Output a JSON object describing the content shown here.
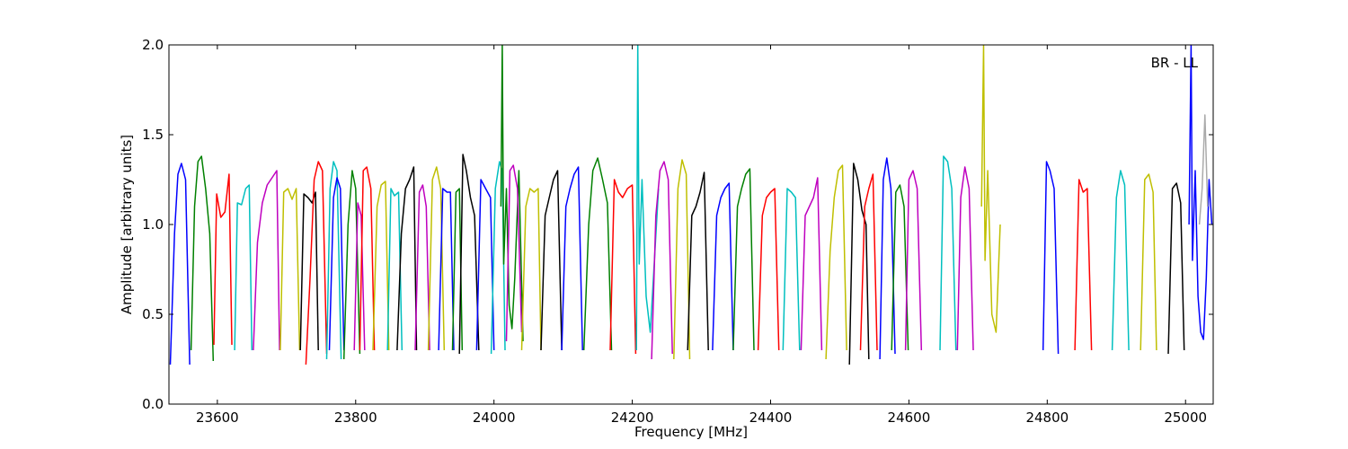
{
  "chart_data": {
    "type": "line",
    "title": "",
    "annotation": "BR - LL",
    "xlabel": "Frequency [MHz]",
    "ylabel": "Amplitude [arbitrary units]",
    "xlim": [
      23530,
      25040
    ],
    "ylim": [
      0.0,
      2.0
    ],
    "x_ticks": [
      23600,
      23800,
      24000,
      24200,
      24400,
      24600,
      24800,
      25000
    ],
    "x_tick_labels": [
      "23600",
      "23800",
      "24000",
      "24200",
      "24400",
      "24600",
      "24800",
      "25000"
    ],
    "y_ticks": [
      0.0,
      0.5,
      1.0,
      1.5,
      2.0
    ],
    "y_tick_labels": [
      "0.0",
      "0.5",
      "1.0",
      "1.5",
      "2.0"
    ],
    "grid": false,
    "legend": "none",
    "color_cycle": [
      "#0000ff",
      "#008000",
      "#ff0000",
      "#00bfbf",
      "#bf00bf",
      "#bfbf00",
      "#000000"
    ],
    "series": [
      {
        "color": "#0000ff",
        "x": [
          23532,
          23538,
          23543,
          23548,
          23554,
          23560
        ],
        "y": [
          0.22,
          0.95,
          1.28,
          1.34,
          1.25,
          0.22
        ]
      },
      {
        "color": "#008000",
        "x": [
          23562,
          23567,
          23572,
          23577,
          23583,
          23589,
          23594
        ],
        "y": [
          0.3,
          1.1,
          1.35,
          1.38,
          1.2,
          0.95,
          0.24
        ]
      },
      {
        "color": "#ff0000",
        "x": [
          23595,
          23599,
          23605,
          23611,
          23617,
          23621
        ],
        "y": [
          0.33,
          1.17,
          1.04,
          1.07,
          1.28,
          0.33
        ]
      },
      {
        "color": "#00bfbf",
        "x": [
          23625,
          23629,
          23635,
          23641,
          23646,
          23650
        ],
        "y": [
          0.3,
          1.12,
          1.11,
          1.2,
          1.22,
          0.3
        ]
      },
      {
        "color": "#bf00bf",
        "x": [
          23652,
          23658,
          23665,
          23672,
          23679,
          23686,
          23690
        ],
        "y": [
          0.3,
          0.9,
          1.12,
          1.22,
          1.26,
          1.3,
          0.3
        ]
      },
      {
        "color": "#bfbf00",
        "x": [
          23691,
          23696,
          23702,
          23708,
          23714,
          23719
        ],
        "y": [
          0.3,
          1.18,
          1.2,
          1.14,
          1.2,
          0.3
        ]
      },
      {
        "color": "#000000",
        "x": [
          23720,
          23725,
          23731,
          23737,
          23742,
          23746
        ],
        "y": [
          0.3,
          1.17,
          1.15,
          1.12,
          1.18,
          0.3
        ]
      },
      {
        "color": "#ff0000",
        "x": [
          23728,
          23734,
          23740,
          23746,
          23752,
          23758
        ],
        "y": [
          0.22,
          0.7,
          1.25,
          1.35,
          1.3,
          0.28
        ]
      },
      {
        "color": "#00bfbf",
        "x": [
          23758,
          23763,
          23768,
          23773,
          23779
        ],
        "y": [
          0.25,
          1.2,
          1.35,
          1.3,
          0.25
        ]
      },
      {
        "color": "#0000ff",
        "x": [
          23762,
          23768,
          23773,
          23778,
          23783
        ],
        "y": [
          0.3,
          1.15,
          1.26,
          1.2,
          0.3
        ]
      },
      {
        "color": "#008000",
        "x": [
          23783,
          23789,
          23795,
          23800,
          23806
        ],
        "y": [
          0.25,
          1.0,
          1.3,
          1.2,
          0.28
        ]
      },
      {
        "color": "#bf00bf",
        "x": [
          23798,
          23803,
          23808,
          23813
        ],
        "y": [
          0.3,
          1.12,
          1.05,
          0.3
        ]
      },
      {
        "color": "#ff0000",
        "x": [
          23806,
          23811,
          23816,
          23822,
          23827
        ],
        "y": [
          0.3,
          1.3,
          1.32,
          1.2,
          0.3
        ]
      },
      {
        "color": "#bfbf00",
        "x": [
          23825,
          23831,
          23837,
          23843,
          23848
        ],
        "y": [
          0.3,
          1.1,
          1.22,
          1.24,
          0.3
        ]
      },
      {
        "color": "#00bfbf",
        "x": [
          23846,
          23851,
          23856,
          23862,
          23867
        ],
        "y": [
          0.3,
          1.2,
          1.16,
          1.18,
          0.3
        ]
      },
      {
        "color": "#000000",
        "x": [
          23860,
          23866,
          23872,
          23878,
          23884,
          23888
        ],
        "y": [
          0.3,
          0.95,
          1.2,
          1.25,
          1.32,
          0.3
        ]
      },
      {
        "color": "#bf00bf",
        "x": [
          23886,
          23892,
          23897,
          23902,
          23907
        ],
        "y": [
          0.3,
          1.18,
          1.22,
          1.1,
          0.3
        ]
      },
      {
        "color": "#bfbf00",
        "x": [
          23905,
          23911,
          23917,
          23923,
          23928
        ],
        "y": [
          0.3,
          1.25,
          1.32,
          1.2,
          0.3
        ]
      },
      {
        "color": "#0000ff",
        "x": [
          23920,
          23926,
          23932,
          23937,
          23942
        ],
        "y": [
          0.3,
          1.2,
          1.18,
          1.18,
          0.3
        ]
      },
      {
        "color": "#008000",
        "x": [
          23940,
          23945,
          23950,
          23954
        ],
        "y": [
          0.3,
          1.18,
          1.2,
          0.3
        ]
      },
      {
        "color": "#000000",
        "x": [
          23950,
          23955,
          23960,
          23966,
          23972,
          23978
        ],
        "y": [
          0.28,
          1.39,
          1.3,
          1.15,
          1.05,
          0.3
        ]
      },
      {
        "color": "#0000ff",
        "x": [
          23975,
          23981,
          23988,
          23995,
          24000
        ],
        "y": [
          0.3,
          1.25,
          1.2,
          1.15,
          0.3
        ]
      },
      {
        "color": "#00bfbf",
        "x": [
          23996,
          24002,
          24008,
          24012,
          24016
        ],
        "y": [
          0.28,
          1.2,
          1.35,
          1.3,
          0.3
        ]
      },
      {
        "color": "#008000",
        "x": [
          24010,
          24012,
          24014,
          24018,
          24022,
          24026,
          24030,
          24036,
          24042
        ],
        "y": [
          1.1,
          2.0,
          0.78,
          1.2,
          0.55,
          0.42,
          0.7,
          1.3,
          0.35
        ]
      },
      {
        "color": "#bf00bf",
        "x": [
          24018,
          24023,
          24028,
          24034,
          24040
        ],
        "y": [
          0.35,
          1.3,
          1.33,
          1.2,
          0.4
        ]
      },
      {
        "color": "#bfbf00",
        "x": [
          24040,
          24046,
          24052,
          24058,
          24064,
          24068
        ],
        "y": [
          0.3,
          1.1,
          1.2,
          1.18,
          1.2,
          0.3
        ]
      },
      {
        "color": "#000000",
        "x": [
          24068,
          24074,
          24080,
          24086,
          24092,
          24098
        ],
        "y": [
          0.3,
          1.05,
          1.15,
          1.25,
          1.3,
          0.3
        ]
      },
      {
        "color": "#0000ff",
        "x": [
          24098,
          24104,
          24110,
          24116,
          24122,
          24128
        ],
        "y": [
          0.3,
          1.1,
          1.2,
          1.28,
          1.32,
          0.3
        ]
      },
      {
        "color": "#008000",
        "x": [
          24130,
          24137,
          24143,
          24150,
          24157,
          24164,
          24170
        ],
        "y": [
          0.3,
          1.0,
          1.3,
          1.37,
          1.25,
          1.12,
          0.3
        ]
      },
      {
        "color": "#ff0000",
        "x": [
          24168,
          24174,
          24180,
          24186,
          24193,
          24200,
          24205
        ],
        "y": [
          0.3,
          1.25,
          1.18,
          1.15,
          1.2,
          1.22,
          0.28
        ]
      },
      {
        "color": "#00bfbf",
        "x": [
          24206,
          24208,
          24210,
          24214,
          24220,
          24226,
          24232,
          24238
        ],
        "y": [
          0.3,
          2.0,
          0.78,
          1.25,
          0.6,
          0.4,
          0.8,
          1.2
        ]
      },
      {
        "color": "#bf00bf",
        "x": [
          24228,
          24234,
          24240,
          24246,
          24252,
          24258
        ],
        "y": [
          0.25,
          1.05,
          1.3,
          1.35,
          1.25,
          0.28
        ]
      },
      {
        "color": "#bfbf00",
        "x": [
          24260,
          24266,
          24272,
          24278,
          24283
        ],
        "y": [
          0.25,
          1.2,
          1.36,
          1.28,
          0.25
        ]
      },
      {
        "color": "#000000",
        "x": [
          24280,
          24286,
          24292,
          24298,
          24304,
          24310
        ],
        "y": [
          0.3,
          1.05,
          1.1,
          1.18,
          1.29,
          0.3
        ]
      },
      {
        "color": "#0000ff",
        "x": [
          24316,
          24322,
          24328,
          24334,
          24340,
          24346
        ],
        "y": [
          0.3,
          1.05,
          1.15,
          1.2,
          1.23,
          0.3
        ]
      },
      {
        "color": "#008000",
        "x": [
          24346,
          24352,
          24358,
          24364,
          24370,
          24376
        ],
        "y": [
          0.3,
          1.1,
          1.2,
          1.28,
          1.31,
          0.3
        ]
      },
      {
        "color": "#ff0000",
        "x": [
          24382,
          24388,
          24394,
          24400,
          24406,
          24412
        ],
        "y": [
          0.3,
          1.05,
          1.15,
          1.18,
          1.2,
          0.3
        ]
      },
      {
        "color": "#00bfbf",
        "x": [
          24418,
          24424,
          24430,
          24436,
          24442
        ],
        "y": [
          0.3,
          1.2,
          1.18,
          1.15,
          0.3
        ]
      },
      {
        "color": "#bf00bf",
        "x": [
          24444,
          24450,
          24456,
          24462,
          24468,
          24474
        ],
        "y": [
          0.3,
          1.05,
          1.1,
          1.15,
          1.26,
          0.3
        ]
      },
      {
        "color": "#bfbf00",
        "x": [
          24480,
          24486,
          24492,
          24498,
          24504,
          24510
        ],
        "y": [
          0.25,
          0.85,
          1.15,
          1.3,
          1.33,
          0.3
        ]
      },
      {
        "color": "#000000",
        "x": [
          24514,
          24520,
          24526,
          24532,
          24538,
          24542
        ],
        "y": [
          0.22,
          1.34,
          1.25,
          1.08,
          1.0,
          0.25
        ]
      },
      {
        "color": "#ff0000",
        "x": [
          24530,
          24536,
          24542,
          24548,
          24554
        ],
        "y": [
          0.3,
          1.1,
          1.2,
          1.28,
          0.3
        ]
      },
      {
        "color": "#0000ff",
        "x": [
          24558,
          24563,
          24568,
          24574,
          24580
        ],
        "y": [
          0.25,
          1.25,
          1.37,
          1.2,
          0.28
        ]
      },
      {
        "color": "#008000",
        "x": [
          24575,
          24581,
          24587,
          24593,
          24599
        ],
        "y": [
          0.3,
          1.18,
          1.22,
          1.1,
          0.3
        ]
      },
      {
        "color": "#bf00bf",
        "x": [
          24595,
          24600,
          24606,
          24612,
          24618
        ],
        "y": [
          0.3,
          1.25,
          1.3,
          1.2,
          0.3
        ]
      },
      {
        "color": "#00bfbf",
        "x": [
          24645,
          24650,
          24656,
          24662,
          24668
        ],
        "y": [
          0.3,
          1.38,
          1.35,
          1.2,
          0.3
        ]
      },
      {
        "color": "#bf00bf",
        "x": [
          24670,
          24675,
          24681,
          24687,
          24693
        ],
        "y": [
          0.3,
          1.15,
          1.32,
          1.2,
          0.3
        ]
      },
      {
        "color": "#bfbf00",
        "x": [
          24705,
          24708,
          24710,
          24714,
          24720,
          24726,
          24732
        ],
        "y": [
          1.1,
          2.0,
          0.8,
          1.3,
          0.5,
          0.4,
          1.0
        ]
      },
      {
        "color": "#0000ff",
        "x": [
          24794,
          24799,
          24804,
          24810,
          24816
        ],
        "y": [
          0.3,
          1.35,
          1.3,
          1.2,
          0.28
        ]
      },
      {
        "color": "#ff0000",
        "x": [
          24840,
          24846,
          24852,
          24858,
          24864
        ],
        "y": [
          0.3,
          1.25,
          1.18,
          1.2,
          0.3
        ]
      },
      {
        "color": "#00bfbf",
        "x": [
          24894,
          24900,
          24906,
          24912,
          24918
        ],
        "y": [
          0.3,
          1.15,
          1.3,
          1.22,
          0.3
        ]
      },
      {
        "color": "#bfbf00",
        "x": [
          24935,
          24941,
          24947,
          24953,
          24958
        ],
        "y": [
          0.3,
          1.25,
          1.28,
          1.18,
          0.3
        ]
      },
      {
        "color": "#000000",
        "x": [
          24975,
          24981,
          24987,
          24993,
          24998
        ],
        "y": [
          0.28,
          1.2,
          1.23,
          1.12,
          0.3
        ]
      },
      {
        "color": "#0000ff",
        "x": [
          25005,
          25008,
          25010,
          25014,
          25018,
          25022,
          25026,
          25030,
          25034,
          25038
        ],
        "y": [
          1.0,
          2.0,
          0.8,
          1.3,
          0.6,
          0.4,
          0.36,
          0.7,
          1.25,
          1.0
        ]
      },
      {
        "color": "#aaaaaa",
        "x": [
          25020,
          25024,
          25028,
          25032
        ],
        "y": [
          1.0,
          1.2,
          1.61,
          1.1
        ]
      }
    ]
  }
}
